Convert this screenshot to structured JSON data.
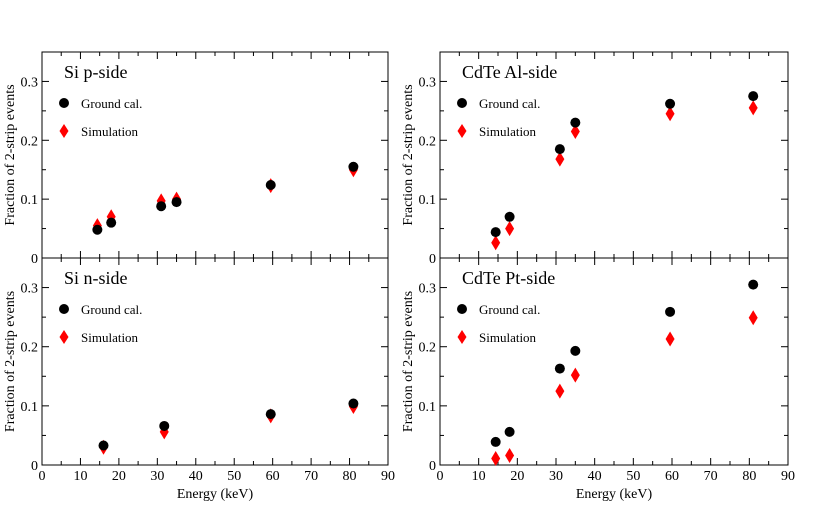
{
  "chart_data": [
    {
      "type": "scatter",
      "title": "Si p-side",
      "ylabel": "Fraction of 2-strip events",
      "xlabel": "",
      "xlim": [
        0,
        90
      ],
      "ylim": [
        0,
        0.35
      ],
      "xticks": [
        "0",
        "10",
        "20",
        "30",
        "40",
        "50",
        "60",
        "70",
        "80",
        "90"
      ],
      "yticks": [
        "0",
        "0.1",
        "0.2",
        "0.3"
      ],
      "legend_position": "top-left",
      "series": [
        {
          "name": "Ground cal.",
          "marker": "circle",
          "color": "#000000",
          "x": [
            14.4,
            18.0,
            31.0,
            35.0,
            59.5,
            81.0
          ],
          "y": [
            0.048,
            0.06,
            0.088,
            0.095,
            0.124,
            0.155
          ]
        },
        {
          "name": "Simulation",
          "marker": "diamond",
          "color": "#ff0000",
          "x": [
            14.4,
            18.0,
            31.0,
            35.0,
            59.5,
            81.0
          ],
          "y": [
            0.055,
            0.07,
            0.097,
            0.1,
            0.123,
            0.15
          ]
        }
      ]
    },
    {
      "type": "scatter",
      "title": "CdTe Al-side",
      "ylabel": "Fraction of 2-strip events",
      "xlabel": "",
      "xlim": [
        0,
        90
      ],
      "ylim": [
        0,
        0.35
      ],
      "xticks": [
        "0",
        "10",
        "20",
        "30",
        "40",
        "50",
        "60",
        "70",
        "80",
        "90"
      ],
      "yticks": [
        "0",
        "0.1",
        "0.2",
        "0.3"
      ],
      "legend_position": "top-left",
      "series": [
        {
          "name": "Ground cal.",
          "marker": "circle",
          "color": "#000000",
          "x": [
            14.4,
            18.0,
            31.0,
            35.0,
            59.5,
            81.0
          ],
          "y": [
            0.044,
            0.07,
            0.185,
            0.23,
            0.262,
            0.275
          ]
        },
        {
          "name": "Simulation",
          "marker": "diamond",
          "color": "#ff0000",
          "x": [
            14.4,
            18.0,
            31.0,
            35.0,
            59.5,
            81.0
          ],
          "y": [
            0.026,
            0.05,
            0.168,
            0.215,
            0.245,
            0.255
          ]
        }
      ]
    },
    {
      "type": "scatter",
      "title": "Si n-side",
      "ylabel": "Fraction of 2-strip events",
      "xlabel": "Energy (keV)",
      "xlim": [
        0,
        90
      ],
      "ylim": [
        0,
        0.35
      ],
      "xticks": [
        "0",
        "10",
        "20",
        "30",
        "40",
        "50",
        "60",
        "70",
        "80",
        "90"
      ],
      "yticks": [
        "0",
        "0.1",
        "0.2",
        "0.3"
      ],
      "legend_position": "top-left",
      "series": [
        {
          "name": "Ground cal.",
          "marker": "circle",
          "color": "#000000",
          "x": [
            16.0,
            31.8,
            59.5,
            81.0
          ],
          "y": [
            0.033,
            0.066,
            0.086,
            0.104
          ]
        },
        {
          "name": "Simulation",
          "marker": "diamond",
          "color": "#ff0000",
          "x": [
            16.0,
            31.8,
            59.5,
            81.0
          ],
          "y": [
            0.03,
            0.056,
            0.083,
            0.099
          ]
        }
      ]
    },
    {
      "type": "scatter",
      "title": "CdTe Pt-side",
      "ylabel": "Fraction of 2-strip events",
      "xlabel": "Energy (keV)",
      "xlim": [
        0,
        90
      ],
      "ylim": [
        0,
        0.35
      ],
      "xticks": [
        "0",
        "10",
        "20",
        "30",
        "40",
        "50",
        "60",
        "70",
        "80",
        "90"
      ],
      "yticks": [
        "0",
        "0.1",
        "0.2",
        "0.3"
      ],
      "legend_position": "top-left",
      "series": [
        {
          "name": "Ground cal.",
          "marker": "circle",
          "color": "#000000",
          "x": [
            14.4,
            18.0,
            31.0,
            35.0,
            59.5,
            81.0
          ],
          "y": [
            0.039,
            0.056,
            0.163,
            0.193,
            0.259,
            0.305
          ]
        },
        {
          "name": "Simulation",
          "marker": "diamond",
          "color": "#ff0000",
          "x": [
            14.4,
            18.0,
            31.0,
            35.0,
            59.5,
            81.0
          ],
          "y": [
            0.011,
            0.016,
            0.125,
            0.152,
            0.213,
            0.249
          ]
        }
      ]
    }
  ]
}
